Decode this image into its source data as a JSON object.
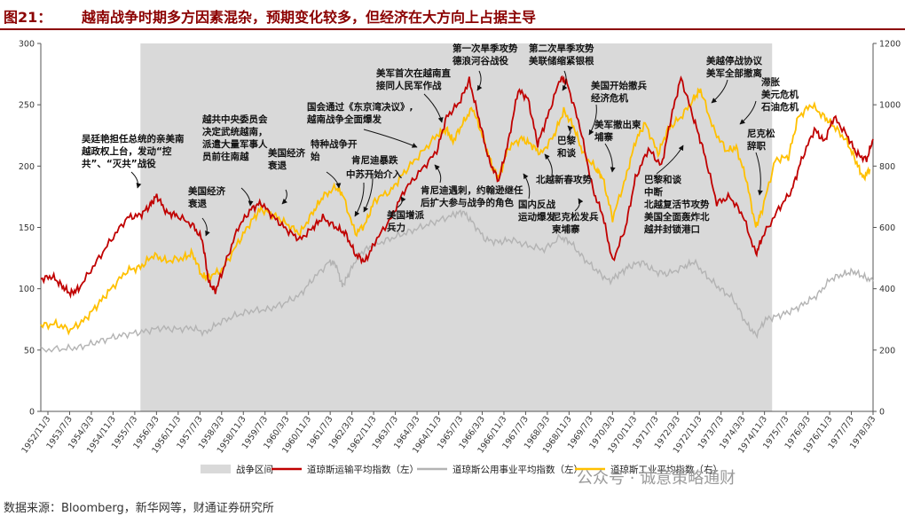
{
  "figure": {
    "number": "图21：",
    "title": "越南战争时期多方因素混杂，预期变化较多，但经济在大方向上占据主导",
    "source": "数据来源：Bloomberg，新华网等，财通证券研究所",
    "watermark": "公众号 · 诚意策略通财"
  },
  "chart_data": {
    "type": "line",
    "x_ticks": [
      "1952/11/3",
      "1953/7/3",
      "1954/3/3",
      "1954/11/3",
      "1955/7/3",
      "1956/3/3",
      "1956/11/3",
      "1957/7/3",
      "1958/3/3",
      "1958/11/3",
      "1959/7/3",
      "1960/3/3",
      "1960/11/3",
      "1961/7/3",
      "1962/3/3",
      "1962/11/3",
      "1963/7/3",
      "1964/3/3",
      "1964/11/3",
      "1965/7/3",
      "1966/3/3",
      "1966/11/3",
      "1967/7/3",
      "1968/3/3",
      "1968/11/3",
      "1969/7/3",
      "1970/3/3",
      "1970/11/3",
      "1971/7/3",
      "1972/3/3",
      "1972/11/3",
      "1973/7/3",
      "1974/3/3",
      "1974/11/3",
      "1975/7/3",
      "1976/3/3",
      "1976/11/3",
      "1977/7/3",
      "1978/3/3"
    ],
    "y_left": {
      "min": 0,
      "max": 300,
      "ticks": [
        0,
        50,
        100,
        150,
        200,
        250,
        300
      ]
    },
    "y_right": {
      "min": 0,
      "max": 1200,
      "ticks": [
        0,
        200,
        400,
        600,
        800,
        1000,
        1200
      ]
    },
    "war_period": {
      "name": "战争区间",
      "start": 1955.9,
      "end": 1975.3,
      "color": "#d9d9d9"
    },
    "series": [
      {
        "name": "道琼斯运输平均指数（左）",
        "color": "#c00000",
        "axis": "left",
        "points": [
          [
            1952.84,
            108
          ],
          [
            1953.2,
            110
          ],
          [
            1953.5,
            102
          ],
          [
            1953.75,
            96
          ],
          [
            1954.0,
            100
          ],
          [
            1954.5,
            120
          ],
          [
            1955.0,
            140
          ],
          [
            1955.5,
            158
          ],
          [
            1955.9,
            160
          ],
          [
            1956.2,
            168
          ],
          [
            1956.4,
            176
          ],
          [
            1956.7,
            162
          ],
          [
            1957.0,
            160
          ],
          [
            1957.5,
            152
          ],
          [
            1957.8,
            140
          ],
          [
            1958.0,
            105
          ],
          [
            1958.2,
            98
          ],
          [
            1958.5,
            120
          ],
          [
            1958.9,
            150
          ],
          [
            1959.3,
            165
          ],
          [
            1959.6,
            170
          ],
          [
            1960.0,
            158
          ],
          [
            1960.4,
            148
          ],
          [
            1960.8,
            140
          ],
          [
            1961.2,
            150
          ],
          [
            1961.5,
            158
          ],
          [
            1961.9,
            150
          ],
          [
            1962.2,
            145
          ],
          [
            1962.5,
            128
          ],
          [
            1962.8,
            122
          ],
          [
            1963.1,
            138
          ],
          [
            1963.6,
            158
          ],
          [
            1964.0,
            180
          ],
          [
            1964.5,
            196
          ],
          [
            1965.0,
            212
          ],
          [
            1965.3,
            240
          ],
          [
            1965.7,
            252
          ],
          [
            1966.0,
            270
          ],
          [
            1966.3,
            238
          ],
          [
            1966.6,
            205
          ],
          [
            1966.9,
            188
          ],
          [
            1967.2,
            220
          ],
          [
            1967.5,
            262
          ],
          [
            1967.8,
            255
          ],
          [
            1968.1,
            218
          ],
          [
            1968.4,
            240
          ],
          [
            1968.8,
            272
          ],
          [
            1969.0,
            268
          ],
          [
            1969.4,
            232
          ],
          [
            1969.8,
            180
          ],
          [
            1970.1,
            160
          ],
          [
            1970.4,
            122
          ],
          [
            1970.8,
            150
          ],
          [
            1971.1,
            190
          ],
          [
            1971.5,
            214
          ],
          [
            1971.9,
            200
          ],
          [
            1972.2,
            240
          ],
          [
            1972.5,
            272
          ],
          [
            1972.9,
            238
          ],
          [
            1973.2,
            212
          ],
          [
            1973.6,
            170
          ],
          [
            1974.0,
            175
          ],
          [
            1974.4,
            160
          ],
          [
            1974.8,
            128
          ],
          [
            1975.0,
            142
          ],
          [
            1975.5,
            165
          ],
          [
            1975.9,
            180
          ],
          [
            1976.2,
            205
          ],
          [
            1976.6,
            230
          ],
          [
            1976.9,
            220
          ],
          [
            1977.2,
            240
          ],
          [
            1977.6,
            225
          ],
          [
            1977.9,
            210
          ],
          [
            1978.2,
            205
          ],
          [
            1978.4,
            222
          ]
        ]
      },
      {
        "name": "道琼斯公用事业平均指数（左）",
        "color": "#b3b3b3",
        "axis": "left",
        "points": [
          [
            1952.84,
            50
          ],
          [
            1953.5,
            51
          ],
          [
            1954.0,
            52
          ],
          [
            1954.5,
            56
          ],
          [
            1955.0,
            60
          ],
          [
            1955.5,
            63
          ],
          [
            1956.0,
            65
          ],
          [
            1956.5,
            68
          ],
          [
            1957.0,
            67
          ],
          [
            1957.5,
            68
          ],
          [
            1957.9,
            64
          ],
          [
            1958.3,
            72
          ],
          [
            1958.8,
            78
          ],
          [
            1959.3,
            82
          ],
          [
            1959.8,
            83
          ],
          [
            1960.3,
            88
          ],
          [
            1960.8,
            95
          ],
          [
            1961.2,
            108
          ],
          [
            1961.7,
            122
          ],
          [
            1961.9,
            120
          ],
          [
            1962.1,
            102
          ],
          [
            1962.3,
            112
          ],
          [
            1962.6,
            128
          ],
          [
            1963.0,
            135
          ],
          [
            1963.5,
            140
          ],
          [
            1964.0,
            145
          ],
          [
            1964.5,
            150
          ],
          [
            1965.0,
            155
          ],
          [
            1965.5,
            160
          ],
          [
            1965.8,
            163
          ],
          [
            1966.1,
            154
          ],
          [
            1966.5,
            140
          ],
          [
            1966.9,
            138
          ],
          [
            1967.3,
            140
          ],
          [
            1967.8,
            135
          ],
          [
            1968.3,
            132
          ],
          [
            1968.8,
            142
          ],
          [
            1969.1,
            138
          ],
          [
            1969.5,
            125
          ],
          [
            1969.9,
            115
          ],
          [
            1970.3,
            106
          ],
          [
            1970.6,
            112
          ],
          [
            1970.9,
            118
          ],
          [
            1971.3,
            122
          ],
          [
            1971.7,
            114
          ],
          [
            1972.1,
            112
          ],
          [
            1972.6,
            118
          ],
          [
            1972.9,
            122
          ],
          [
            1973.3,
            110
          ],
          [
            1973.7,
            100
          ],
          [
            1974.1,
            92
          ],
          [
            1974.5,
            72
          ],
          [
            1974.8,
            62
          ],
          [
            1975.1,
            75
          ],
          [
            1975.5,
            78
          ],
          [
            1975.9,
            82
          ],
          [
            1976.3,
            88
          ],
          [
            1976.7,
            95
          ],
          [
            1977.1,
            108
          ],
          [
            1977.5,
            112
          ],
          [
            1977.8,
            114
          ],
          [
            1978.1,
            110
          ],
          [
            1978.4,
            106
          ]
        ]
      },
      {
        "name": "道琼斯工业平均指数（右）",
        "color": "#ffc000",
        "axis": "right",
        "points": [
          [
            1952.84,
            280
          ],
          [
            1953.3,
            285
          ],
          [
            1953.75,
            265
          ],
          [
            1954.2,
            300
          ],
          [
            1954.6,
            350
          ],
          [
            1955.0,
            400
          ],
          [
            1955.5,
            460
          ],
          [
            1955.9,
            470
          ],
          [
            1956.3,
            510
          ],
          [
            1956.7,
            490
          ],
          [
            1957.2,
            500
          ],
          [
            1957.5,
            515
          ],
          [
            1957.8,
            440
          ],
          [
            1958.0,
            440
          ],
          [
            1958.4,
            460
          ],
          [
            1958.9,
            550
          ],
          [
            1959.3,
            620
          ],
          [
            1959.6,
            660
          ],
          [
            1960.0,
            640
          ],
          [
            1960.4,
            610
          ],
          [
            1960.8,
            580
          ],
          [
            1961.2,
            650
          ],
          [
            1961.5,
            700
          ],
          [
            1961.9,
            730
          ],
          [
            1962.1,
            710
          ],
          [
            1962.5,
            580
          ],
          [
            1962.8,
            610
          ],
          [
            1963.1,
            690
          ],
          [
            1963.6,
            720
          ],
          [
            1964.0,
            780
          ],
          [
            1964.5,
            840
          ],
          [
            1965.0,
            900
          ],
          [
            1965.3,
            920
          ],
          [
            1965.5,
            880
          ],
          [
            1965.8,
            940
          ],
          [
            1966.1,
            990
          ],
          [
            1966.4,
            900
          ],
          [
            1966.7,
            800
          ],
          [
            1966.9,
            760
          ],
          [
            1967.2,
            860
          ],
          [
            1967.6,
            890
          ],
          [
            1967.9,
            870
          ],
          [
            1968.2,
            840
          ],
          [
            1968.6,
            900
          ],
          [
            1968.9,
            980
          ],
          [
            1969.2,
            930
          ],
          [
            1969.5,
            840
          ],
          [
            1969.9,
            790
          ],
          [
            1970.1,
            760
          ],
          [
            1970.4,
            630
          ],
          [
            1970.8,
            760
          ],
          [
            1971.1,
            880
          ],
          [
            1971.4,
            940
          ],
          [
            1971.8,
            840
          ],
          [
            1972.1,
            920
          ],
          [
            1972.5,
            960
          ],
          [
            1972.9,
            1020
          ],
          [
            1973.1,
            1050
          ],
          [
            1973.5,
            920
          ],
          [
            1973.9,
            850
          ],
          [
            1974.2,
            860
          ],
          [
            1974.5,
            760
          ],
          [
            1974.8,
            600
          ],
          [
            1975.0,
            660
          ],
          [
            1975.4,
            820
          ],
          [
            1975.8,
            830
          ],
          [
            1976.1,
            960
          ],
          [
            1976.5,
            1000
          ],
          [
            1976.9,
            960
          ],
          [
            1977.2,
            930
          ],
          [
            1977.6,
            880
          ],
          [
            1977.9,
            810
          ],
          [
            1978.1,
            760
          ],
          [
            1978.3,
            790
          ]
        ]
      }
    ],
    "annotations": [
      {
        "lines": [
          "吴廷艳担任总统的亲美南",
          "越政权上台，发动“控",
          "共”、“灭共”战役"
        ]
      },
      {
        "lines": [
          "美国经济",
          "衰退"
        ]
      },
      {
        "lines": [
          "越共中央委员会",
          "决定武统越南，",
          "派遣大量军事人",
          "员前往南越"
        ]
      },
      {
        "lines": [
          "美国经济",
          "衰退"
        ]
      },
      {
        "lines": [
          "特种战争开",
          "始"
        ]
      },
      {
        "lines": [
          "肯尼迪暴跌"
        ]
      },
      {
        "lines": [
          "中苏开始介入"
        ]
      },
      {
        "lines": [
          "国会通过《东京湾决议》,",
          "越南战争全面爆发"
        ]
      },
      {
        "lines": [
          "美军首次在越南直",
          "接同人民军作战"
        ]
      },
      {
        "lines": [
          "美国增派",
          "兵力"
        ]
      },
      {
        "lines": [
          "肯尼迪遇刺，约翰逊继任",
          "后扩大参与战争的角色"
        ]
      },
      {
        "lines": [
          "第一次旱季攻势",
          "德浪河谷战役"
        ]
      },
      {
        "lines": [
          "第二次旱季攻势",
          "美联储缩紧银根"
        ]
      },
      {
        "lines": [
          "国内反战",
          "运动爆发"
        ]
      },
      {
        "lines": [
          "巴黎",
          "和谈"
        ]
      },
      {
        "lines": [
          "北越新春攻势"
        ]
      },
      {
        "lines": [
          "美国开始撤兵",
          "经济危机"
        ]
      },
      {
        "lines": [
          "美军撤出柬",
          "埔寨"
        ]
      },
      {
        "lines": [
          "尼克松发兵",
          "柬埔寨"
        ]
      },
      {
        "lines": [
          "巴黎和谈",
          "中断",
          "北越复活节攻势",
          "美国全面轰炸北",
          "越并封锁港口"
        ]
      },
      {
        "lines": [
          "美越停战协议",
          "美军全部撤离"
        ]
      },
      {
        "lines": [
          "滞胀",
          "美元危机",
          "石油危机"
        ]
      },
      {
        "lines": [
          "尼克松",
          "辞职"
        ]
      }
    ]
  }
}
